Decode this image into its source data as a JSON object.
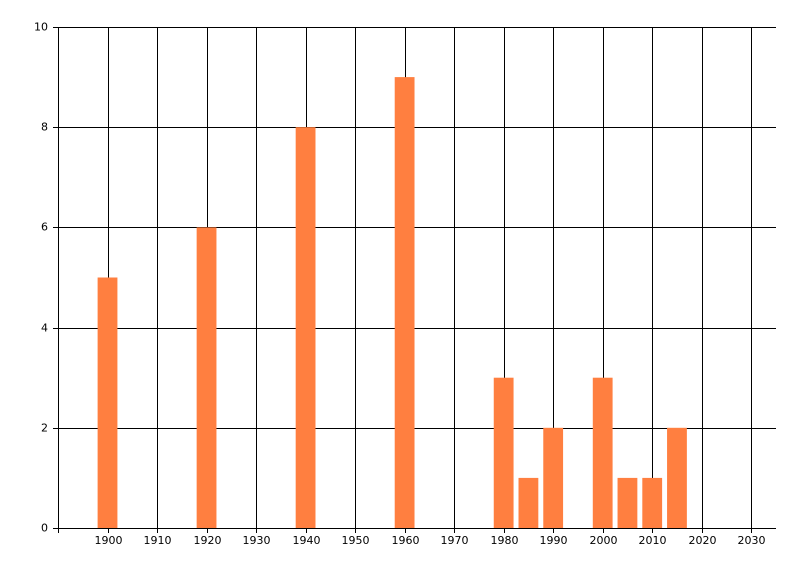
{
  "chart_data": {
    "type": "bar",
    "x": [
      1900,
      1920,
      1940,
      1960,
      1980,
      1985,
      1990,
      2000,
      2005,
      2010,
      2015
    ],
    "values": [
      5,
      6,
      8,
      9,
      3,
      1,
      2,
      3,
      1,
      1,
      2
    ],
    "color": "#ff7f40",
    "xlim": [
      1890,
      2035
    ],
    "xticks": [
      1900,
      1910,
      1920,
      1930,
      1940,
      1950,
      1960,
      1970,
      1980,
      1990,
      2000,
      2010,
      2020,
      2030
    ],
    "ylim": [
      0,
      10
    ],
    "yticks": [
      0,
      2,
      4,
      6,
      8,
      10
    ],
    "grid": true
  }
}
